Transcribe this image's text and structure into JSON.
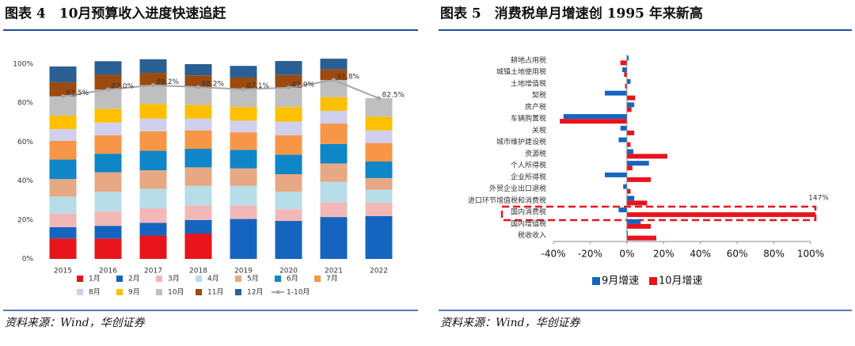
{
  "chart_data": [
    {
      "type": "bar",
      "stacked": true,
      "title": "图表 4　10月预算收入进度快速追赶",
      "source": "资料来源：Wind，华创证券",
      "categories": [
        "2015",
        "2016",
        "2017",
        "2018",
        "2019",
        "2020",
        "2021",
        "2022"
      ],
      "ylim": [
        0,
        100
      ],
      "yticks": [
        {
          "value": 0,
          "label": "0%"
        },
        {
          "value": 20,
          "label": "20%"
        },
        {
          "value": 40,
          "label": "40%"
        },
        {
          "value": 60,
          "label": "60%"
        },
        {
          "value": 80,
          "label": "80%"
        },
        {
          "value": 100,
          "label": "100%"
        }
      ],
      "grid": false,
      "legend": "bottom",
      "series": [
        {
          "name": "1月",
          "color": "#e8141c",
          "values": [
            10.5,
            10.5,
            12,
            13,
            null,
            null,
            null,
            null
          ]
        },
        {
          "name": "2月",
          "color": "#1565c0",
          "values": [
            5.8,
            6.5,
            6.5,
            7,
            20.5,
            19.5,
            21.5,
            22
          ]
        },
        {
          "name": "3月",
          "color": "#f2b8b8",
          "values": [
            6.9,
            7.5,
            7.5,
            7.5,
            7,
            6,
            7.5,
            7
          ]
        },
        {
          "name": "4月",
          "color": "#b7dde8",
          "values": [
            8.8,
            10,
            10,
            10,
            10,
            9,
            10.5,
            6.5
          ]
        },
        {
          "name": "5月",
          "color": "#e6a984",
          "values": [
            9,
            10,
            9.5,
            9.5,
            9,
            9,
            9.5,
            6
          ]
        },
        {
          "name": "6月",
          "color": "#0f86c8",
          "values": [
            10,
            9.5,
            10,
            9.5,
            9.5,
            10,
            10,
            8.5
          ]
        },
        {
          "name": "7月",
          "color": "#f79646",
          "values": [
            9.6,
            9.5,
            10,
            9.5,
            9,
            10,
            10.5,
            9.5
          ]
        },
        {
          "name": "8月",
          "color": "#cfcfee",
          "values": [
            6.1,
            6.5,
            6.5,
            6,
            6,
            7,
            6.5,
            6.5
          ]
        },
        {
          "name": "9月",
          "color": "#ffc000",
          "values": [
            6.9,
            7,
            7.5,
            7,
            7,
            7.5,
            7,
            7
          ]
        },
        {
          "name": "10月",
          "color": "#bfbfbf",
          "values": [
            9.9,
            10,
            9.7,
            9.2,
            9.1,
            9.9,
            8.8,
            9.5
          ]
        },
        {
          "name": "11月",
          "color": "#9c4a0e",
          "values": [
            7.2,
            7.5,
            6.3,
            6,
            6,
            6.5,
            5.5,
            null
          ]
        },
        {
          "name": "12月",
          "color": "#2a5f93",
          "values": [
            8.1,
            7,
            7,
            5.8,
            6,
            7.2,
            5.5,
            null
          ]
        },
        {
          "name": "1-10月",
          "type": "line",
          "color": "#a6a6a6",
          "values": [
            83.5,
            87.0,
            89.2,
            88.2,
            87.1,
            87.9,
            91.8,
            82.5
          ],
          "value_labels": [
            "83.5%",
            "87.0%",
            "89.2%",
            "88.2%",
            "87.1%",
            "87.9%",
            "91.8%",
            "82.5%"
          ]
        }
      ]
    },
    {
      "type": "bar",
      "orientation": "horizontal",
      "title": "图表 5　消费税单月增速创 1995 年来新高",
      "source": "资料来源：Wind，华创证券",
      "categories": [
        "耕地占用税",
        "城镇土地使用税",
        "土地增值税",
        "契税",
        "房产税",
        "车辆购置税",
        "关税",
        "城市维护建设税",
        "资源税",
        "个人所得税",
        "企业所得税",
        "外贸企业出口退税",
        "进口环节增值税和消费税",
        "国内消费税",
        "国内增值税",
        "税收收入"
      ],
      "xlim": [
        -40,
        100
      ],
      "xticks": [
        {
          "value": -40,
          "label": "-40%"
        },
        {
          "value": -20,
          "label": "-20%"
        },
        {
          "value": 0,
          "label": "0%"
        },
        {
          "value": 20,
          "label": "20%"
        },
        {
          "value": 40,
          "label": "40%"
        },
        {
          "value": 60,
          "label": "60%"
        },
        {
          "value": 80,
          "label": "80%"
        },
        {
          "value": 100,
          "label": "100%"
        }
      ],
      "legend": "bottom",
      "series": [
        {
          "name": "9月增速",
          "color": "#1565c0",
          "values": [
            1,
            -2.5,
            2,
            -12,
            4,
            -34.5,
            -3.5,
            -4.5,
            3.5,
            12,
            -12,
            -2,
            4,
            -4.5,
            7.5,
            0.5
          ]
        },
        {
          "name": "10月增速",
          "color": "#e8141c",
          "values": [
            -3.5,
            -1.5,
            -1,
            4.5,
            2.5,
            -36.5,
            4,
            2,
            22,
            3,
            13,
            2,
            11,
            147,
            13,
            16
          ],
          "value_labels": [
            null,
            null,
            null,
            null,
            null,
            null,
            null,
            null,
            null,
            null,
            null,
            null,
            null,
            "147%",
            null,
            null
          ]
        }
      ]
    }
  ]
}
